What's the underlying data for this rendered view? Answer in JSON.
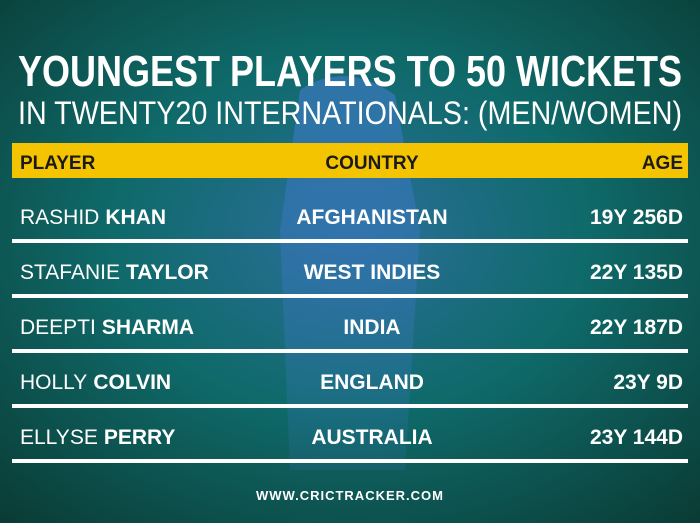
{
  "title": "YOUNGEST PLAYERS TO 50 WICKETS",
  "subtitle": "IN TWENTY20 INTERNATIONALS: (MEN/WOMEN)",
  "table": {
    "headers": [
      "PLAYER",
      "COUNTRY",
      "AGE"
    ],
    "rows": [
      {
        "first": "RASHID",
        "last": "KHAN",
        "country": "AFGHANISTAN",
        "age": "19Y 256D"
      },
      {
        "first": "STAFANIE",
        "last": "TAYLOR",
        "country": "WEST INDIES",
        "age": "22Y 135D"
      },
      {
        "first": "DEEPTI",
        "last": "SHARMA",
        "country": "INDIA",
        "age": "22Y 187D"
      },
      {
        "first": "HOLLY",
        "last": "COLVIN",
        "country": "ENGLAND",
        "age": "23Y 9D"
      },
      {
        "first": "ELLYSE",
        "last": "PERRY",
        "country": "AUSTRALIA",
        "age": "23Y 144D"
      }
    ]
  },
  "footer": "WWW.CRICTRACKER.COM"
}
